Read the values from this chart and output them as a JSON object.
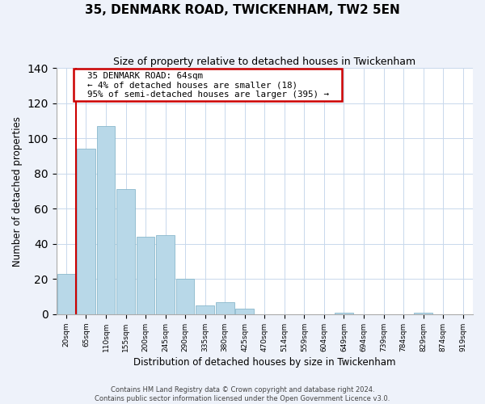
{
  "title": "35, DENMARK ROAD, TWICKENHAM, TW2 5EN",
  "subtitle": "Size of property relative to detached houses in Twickenham",
  "xlabel": "Distribution of detached houses by size in Twickenham",
  "ylabel": "Number of detached properties",
  "bar_labels": [
    "20sqm",
    "65sqm",
    "110sqm",
    "155sqm",
    "200sqm",
    "245sqm",
    "290sqm",
    "335sqm",
    "380sqm",
    "425sqm",
    "470sqm",
    "514sqm",
    "559sqm",
    "604sqm",
    "649sqm",
    "694sqm",
    "739sqm",
    "784sqm",
    "829sqm",
    "874sqm",
    "919sqm"
  ],
  "bar_values": [
    23,
    94,
    107,
    71,
    44,
    45,
    20,
    5,
    7,
    3,
    0,
    0,
    0,
    0,
    1,
    0,
    0,
    0,
    1,
    0,
    0
  ],
  "bar_color": "#b8d8e8",
  "bar_edge_color": "#8ab8cc",
  "annotation_text_line1": "35 DENMARK ROAD: 64sqm",
  "annotation_text_line2": "← 4% of detached houses are smaller (18)",
  "annotation_text_line3": "95% of semi-detached houses are larger (395) →",
  "annotation_box_color": "#ffffff",
  "annotation_border_color": "#cc0000",
  "marker_line_color": "#cc0000",
  "ylim": [
    0,
    140
  ],
  "footnote1": "Contains HM Land Registry data © Crown copyright and database right 2024.",
  "footnote2": "Contains public sector information licensed under the Open Government Licence v3.0.",
  "bg_color": "#eef2fa",
  "plot_bg_color": "#ffffff",
  "grid_color": "#c8d8ec"
}
